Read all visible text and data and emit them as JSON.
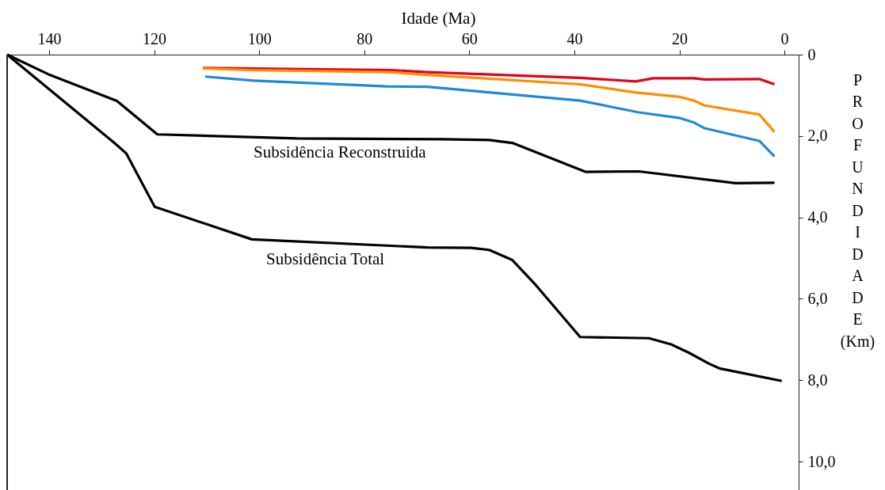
{
  "chart_data": {
    "type": "line",
    "xlabel": "Idade (Ma)",
    "ylabel": "PROFUNDIDADE (Km)",
    "xlim": [
      148,
      -2.7
    ],
    "xticks": [
      140,
      120,
      100,
      80,
      60,
      40,
      20,
      0
    ],
    "ylim": [
      10.7,
      0
    ],
    "yticks": [
      0,
      {
        "value": 2,
        "label": "2,0"
      },
      {
        "value": 4,
        "label": "4,0"
      },
      {
        "value": 6,
        "label": "6,0"
      },
      {
        "value": 8,
        "label": "8,0"
      },
      {
        "value": 10,
        "label": "10,0"
      }
    ],
    "grid": false,
    "marker": "none",
    "line_style": "solid",
    "series": [
      {
        "color": "#000000",
        "x": [
          148,
          127.5,
          125.3,
          119.9,
          101.4,
          67.9,
          59.6,
          56.2,
          51.8,
          47.3,
          38.9,
          25.8,
          21.6,
          18.3,
          14.3,
          12.4,
          0.5
        ],
        "values": [
          0,
          2.18,
          2.43,
          3.74,
          4.54,
          4.74,
          4.75,
          4.8,
          5.05,
          5.67,
          6.94,
          6.97,
          7.12,
          7.32,
          7.6,
          7.71,
          8.02
        ]
      },
      {
        "color": "#000000",
        "x": [
          148,
          140.2,
          127.1,
          119.4,
          92.8,
          64.9,
          56.2,
          51.8,
          37.9,
          27.7,
          9.3,
          1.9
        ],
        "values": [
          0,
          0.48,
          1.14,
          1.96,
          2.06,
          2.08,
          2.1,
          2.17,
          2.88,
          2.87,
          3.16,
          3.15
        ]
      },
      {
        "color": "#e3001b",
        "x": [
          110.7,
          75,
          68,
          38.9,
          28.3,
          25,
          17.2,
          15.2,
          4.8,
          1.9
        ],
        "values": [
          0.33,
          0.38,
          0.43,
          0.57,
          0.66,
          0.58,
          0.58,
          0.61,
          0.6,
          0.73
        ]
      },
      {
        "color": "#ff8c00",
        "x": [
          110.7,
          101,
          75,
          68,
          38.9,
          28.3,
          19.9,
          17.2,
          15.2,
          4.8,
          1.9
        ],
        "values": [
          0.34,
          0.38,
          0.43,
          0.5,
          0.73,
          0.93,
          1.04,
          1.13,
          1.25,
          1.47,
          1.9
        ]
      },
      {
        "color": "#1f8ad0",
        "x": [
          110.3,
          101,
          75.7,
          68,
          38.9,
          27.7,
          19.9,
          17.2,
          15.2,
          4.8,
          1.9
        ],
        "values": [
          0.54,
          0.64,
          0.78,
          0.79,
          1.13,
          1.42,
          1.56,
          1.67,
          1.81,
          2.12,
          2.5
        ]
      }
    ],
    "annotations": [
      "Subsidência Reconstruida",
      "Subsidência Total"
    ]
  }
}
